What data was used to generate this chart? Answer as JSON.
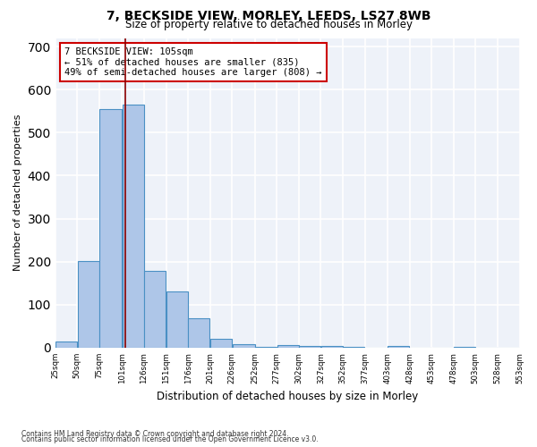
{
  "title1": "7, BECKSIDE VIEW, MORLEY, LEEDS, LS27 8WB",
  "title2": "Size of property relative to detached houses in Morley",
  "xlabel": "Distribution of detached houses by size in Morley",
  "ylabel": "Number of detached properties",
  "annotation_lines": [
    "7 BECKSIDE VIEW: 105sqm",
    "← 51% of detached houses are smaller (835)",
    "49% of semi-detached houses are larger (808) →"
  ],
  "marker_value": 105,
  "bin_edges": [
    25,
    50,
    75,
    101,
    126,
    151,
    176,
    201,
    226,
    252,
    277,
    302,
    327,
    352,
    377,
    403,
    428,
    453,
    478,
    503,
    528,
    553
  ],
  "bar_heights": [
    15,
    202,
    555,
    565,
    178,
    130,
    68,
    20,
    8,
    2,
    7,
    5,
    5,
    2,
    0,
    3,
    0,
    0,
    2,
    0,
    0
  ],
  "bar_color": "#aec6e8",
  "bar_edge_color": "#4a90c4",
  "marker_color": "#8b0000",
  "annotation_box_color": "#ffffff",
  "annotation_border_color": "#cc0000",
  "background_color": "#eef2f9",
  "grid_color": "#ffffff",
  "ylim": [
    0,
    720
  ],
  "yticks": [
    0,
    100,
    200,
    300,
    400,
    500,
    600,
    700
  ],
  "footnote1": "Contains HM Land Registry data © Crown copyright and database right 2024.",
  "footnote2": "Contains public sector information licensed under the Open Government Licence v3.0."
}
